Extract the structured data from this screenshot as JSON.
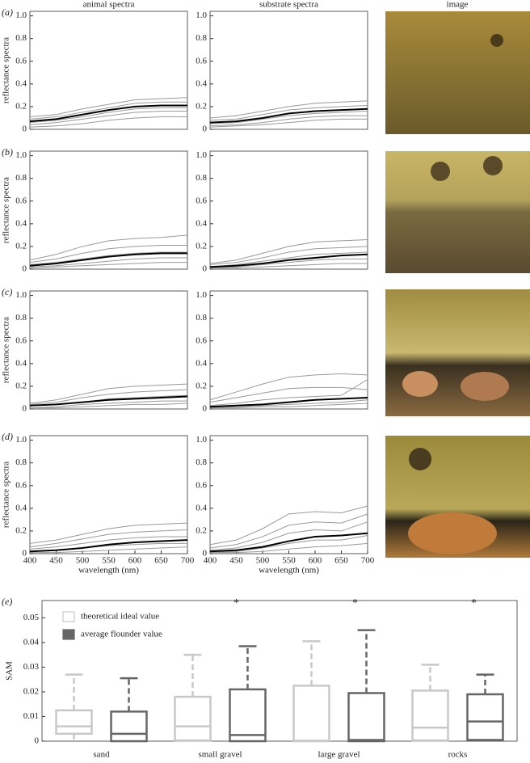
{
  "chart_data": [
    {
      "type": "line",
      "panel": "(a)",
      "title": "animal spectra",
      "ylabel": "reflectance spectra",
      "x": [
        400,
        450,
        500,
        550,
        600,
        650,
        700
      ],
      "xlim": [
        400,
        700
      ],
      "ylim": [
        0,
        1.04
      ],
      "yticks": [
        0,
        0.2,
        0.4,
        0.6,
        0.8,
        {
          "value": 1,
          "label": "1.0"
        }
      ],
      "series": [
        {
          "color": "#999999",
          "values": [
            0.11,
            0.13,
            0.18,
            0.22,
            0.26,
            0.27,
            0.28
          ]
        },
        {
          "color": "#999999",
          "values": [
            0.09,
            0.11,
            0.15,
            0.19,
            0.23,
            0.24,
            0.24
          ]
        },
        {
          "color": "#999999",
          "values": [
            0.06,
            0.08,
            0.11,
            0.15,
            0.18,
            0.19,
            0.19
          ]
        },
        {
          "color": "#999999",
          "values": [
            0.04,
            0.06,
            0.09,
            0.12,
            0.15,
            0.16,
            0.16
          ]
        },
        {
          "color": "#999999",
          "values": [
            0.02,
            0.03,
            0.05,
            0.08,
            0.1,
            0.11,
            0.11
          ]
        },
        {
          "color": "#000000",
          "values": [
            0.07,
            0.09,
            0.13,
            0.17,
            0.2,
            0.21,
            0.21
          ]
        }
      ]
    },
    {
      "type": "line",
      "title": "substrate spectra",
      "x": [
        400,
        450,
        500,
        550,
        600,
        650,
        700
      ],
      "xlim": [
        400,
        700
      ],
      "ylim": [
        0,
        1.04
      ],
      "yticks": [
        0,
        0.2,
        0.4,
        0.6,
        0.8,
        {
          "value": 1,
          "label": "1.0"
        }
      ],
      "series": [
        {
          "color": "#999999",
          "values": [
            0.1,
            0.12,
            0.16,
            0.2,
            0.23,
            0.24,
            0.25
          ]
        },
        {
          "color": "#999999",
          "values": [
            0.08,
            0.09,
            0.13,
            0.17,
            0.19,
            0.2,
            0.21
          ]
        },
        {
          "color": "#999999",
          "values": [
            0.05,
            0.06,
            0.09,
            0.12,
            0.14,
            0.15,
            0.16
          ]
        },
        {
          "color": "#999999",
          "values": [
            0.03,
            0.04,
            0.06,
            0.09,
            0.11,
            0.12,
            0.12
          ]
        },
        {
          "color": "#999999",
          "values": [
            0.02,
            0.03,
            0.04,
            0.06,
            0.08,
            0.09,
            0.09
          ]
        },
        {
          "color": "#000000",
          "values": [
            0.06,
            0.07,
            0.1,
            0.14,
            0.16,
            0.17,
            0.18
          ]
        }
      ]
    },
    {
      "type": "line",
      "panel": "(b)",
      "ylabel": "reflectance spectra",
      "x": [
        400,
        450,
        500,
        550,
        600,
        650,
        700
      ],
      "xlim": [
        400,
        700
      ],
      "ylim": [
        0,
        1.04
      ],
      "yticks": [
        0,
        0.2,
        0.4,
        0.6,
        0.8,
        {
          "value": 1,
          "label": "1.0"
        }
      ],
      "series": [
        {
          "color": "#999999",
          "values": [
            0.08,
            0.13,
            0.2,
            0.25,
            0.27,
            0.28,
            0.3
          ]
        },
        {
          "color": "#999999",
          "values": [
            0.06,
            0.09,
            0.14,
            0.18,
            0.2,
            0.21,
            0.21
          ]
        },
        {
          "color": "#999999",
          "values": [
            0.04,
            0.06,
            0.09,
            0.12,
            0.14,
            0.15,
            0.15
          ]
        },
        {
          "color": "#999999",
          "values": [
            0.02,
            0.03,
            0.05,
            0.07,
            0.09,
            0.1,
            0.1
          ]
        },
        {
          "color": "#999999",
          "values": [
            0.01,
            0.02,
            0.03,
            0.04,
            0.05,
            0.06,
            0.06
          ]
        },
        {
          "color": "#000000",
          "values": [
            0.03,
            0.05,
            0.08,
            0.11,
            0.13,
            0.14,
            0.14
          ]
        }
      ]
    },
    {
      "type": "line",
      "x": [
        400,
        450,
        500,
        550,
        600,
        650,
        700
      ],
      "xlim": [
        400,
        700
      ],
      "ylim": [
        0,
        1.04
      ],
      "yticks": [
        0,
        0.2,
        0.4,
        0.6,
        0.8,
        {
          "value": 1,
          "label": "1.0"
        }
      ],
      "series": [
        {
          "color": "#999999",
          "values": [
            0.05,
            0.08,
            0.14,
            0.2,
            0.24,
            0.25,
            0.26
          ]
        },
        {
          "color": "#999999",
          "values": [
            0.04,
            0.06,
            0.1,
            0.15,
            0.18,
            0.19,
            0.2
          ]
        },
        {
          "color": "#999999",
          "values": [
            0.02,
            0.04,
            0.07,
            0.1,
            0.13,
            0.14,
            0.15
          ]
        },
        {
          "color": "#999999",
          "values": [
            0.01,
            0.02,
            0.04,
            0.06,
            0.08,
            0.09,
            0.09
          ]
        },
        {
          "color": "#999999",
          "values": [
            0.01,
            0.01,
            0.02,
            0.03,
            0.04,
            0.05,
            0.05
          ]
        },
        {
          "color": "#000000",
          "values": [
            0.02,
            0.03,
            0.05,
            0.08,
            0.1,
            0.12,
            0.13
          ]
        }
      ]
    },
    {
      "type": "line",
      "panel": "(c)",
      "ylabel": "reflectance spectra",
      "x": [
        400,
        450,
        500,
        550,
        600,
        650,
        700
      ],
      "xlim": [
        400,
        700
      ],
      "ylim": [
        0,
        1.04
      ],
      "yticks": [
        0,
        0.2,
        0.4,
        0.6,
        0.8,
        {
          "value": 1,
          "label": "1.0"
        }
      ],
      "series": [
        {
          "color": "#999999",
          "values": [
            0.05,
            0.08,
            0.13,
            0.18,
            0.2,
            0.21,
            0.22
          ]
        },
        {
          "color": "#999999",
          "values": [
            0.04,
            0.06,
            0.1,
            0.13,
            0.15,
            0.16,
            0.17
          ]
        },
        {
          "color": "#999999",
          "values": [
            0.03,
            0.04,
            0.06,
            0.09,
            0.1,
            0.11,
            0.12
          ]
        },
        {
          "color": "#999999",
          "values": [
            0.01,
            0.02,
            0.04,
            0.05,
            0.06,
            0.07,
            0.07
          ]
        },
        {
          "color": "#999999",
          "values": [
            0.01,
            0.01,
            0.02,
            0.03,
            0.04,
            0.04,
            0.05
          ]
        },
        {
          "color": "#000000",
          "values": [
            0.03,
            0.04,
            0.06,
            0.08,
            0.09,
            0.1,
            0.11
          ]
        }
      ]
    },
    {
      "type": "line",
      "x": [
        400,
        450,
        500,
        550,
        600,
        650,
        700
      ],
      "xlim": [
        400,
        700
      ],
      "ylim": [
        0,
        1.04
      ],
      "yticks": [
        0,
        0.2,
        0.4,
        0.6,
        0.8,
        {
          "value": 1,
          "label": "1.0"
        }
      ],
      "series": [
        {
          "color": "#999999",
          "values": [
            0.08,
            0.15,
            0.22,
            0.28,
            0.3,
            0.31,
            0.3
          ]
        },
        {
          "color": "#999999",
          "values": [
            0.06,
            0.1,
            0.14,
            0.18,
            0.19,
            0.19,
            0.17
          ]
        },
        {
          "color": "#999999",
          "values": [
            0.03,
            0.05,
            0.08,
            0.1,
            0.11,
            0.12,
            0.26
          ]
        },
        {
          "color": "#999999",
          "values": [
            0.01,
            0.02,
            0.03,
            0.04,
            0.05,
            0.06,
            0.08
          ]
        },
        {
          "color": "#999999",
          "values": [
            0.01,
            0.01,
            0.02,
            0.02,
            0.03,
            0.04,
            0.05
          ]
        },
        {
          "color": "#000000",
          "values": [
            0.02,
            0.03,
            0.04,
            0.06,
            0.08,
            0.09,
            0.1
          ]
        }
      ]
    },
    {
      "type": "line",
      "panel": "(d)",
      "ylabel": "reflectance spectra",
      "xlabel": "wavelength (nm)",
      "x": [
        400,
        450,
        500,
        550,
        600,
        650,
        700
      ],
      "xlim": [
        400,
        700
      ],
      "xticks": [
        400,
        450,
        500,
        550,
        600,
        650,
        700
      ],
      "ylim": [
        0,
        1.04
      ],
      "yticks": [
        0,
        0.2,
        0.4,
        0.6,
        0.8,
        {
          "value": 1,
          "label": "1.0"
        }
      ],
      "series": [
        {
          "color": "#999999",
          "values": [
            0.09,
            0.12,
            0.17,
            0.22,
            0.25,
            0.26,
            0.27
          ]
        },
        {
          "color": "#999999",
          "values": [
            0.06,
            0.09,
            0.13,
            0.17,
            0.19,
            0.2,
            0.21
          ]
        },
        {
          "color": "#999999",
          "values": [
            0.04,
            0.06,
            0.09,
            0.12,
            0.14,
            0.15,
            0.15
          ]
        },
        {
          "color": "#999999",
          "values": [
            0.02,
            0.03,
            0.05,
            0.07,
            0.08,
            0.09,
            0.09
          ]
        },
        {
          "color": "#999999",
          "values": [
            0.01,
            0.01,
            0.02,
            0.03,
            0.04,
            0.05,
            0.06
          ]
        },
        {
          "color": "#000000",
          "values": [
            0.02,
            0.03,
            0.05,
            0.08,
            0.1,
            0.11,
            0.12
          ]
        }
      ]
    },
    {
      "type": "line",
      "xlabel": "wavelength (nm)",
      "x": [
        400,
        450,
        500,
        550,
        600,
        650,
        700
      ],
      "xlim": [
        400,
        700
      ],
      "xticks": [
        400,
        450,
        500,
        550,
        600,
        650,
        700
      ],
      "ylim": [
        0,
        1.04
      ],
      "yticks": [
        0,
        0.2,
        0.4,
        0.6,
        0.8,
        {
          "value": 1,
          "label": "1.0"
        }
      ],
      "series": [
        {
          "color": "#999999",
          "values": [
            0.08,
            0.12,
            0.22,
            0.35,
            0.37,
            0.36,
            0.42
          ]
        },
        {
          "color": "#999999",
          "values": [
            0.05,
            0.08,
            0.15,
            0.25,
            0.28,
            0.27,
            0.35
          ]
        },
        {
          "color": "#999999",
          "values": [
            0.03,
            0.05,
            0.1,
            0.18,
            0.21,
            0.2,
            0.28
          ]
        },
        {
          "color": "#999999",
          "values": [
            0.01,
            0.02,
            0.05,
            0.09,
            0.12,
            0.12,
            0.16
          ]
        },
        {
          "color": "#999999",
          "values": [
            0.01,
            0.01,
            0.02,
            0.04,
            0.06,
            0.07,
            0.09
          ]
        },
        {
          "color": "#000000",
          "values": [
            0.02,
            0.03,
            0.06,
            0.11,
            0.15,
            0.16,
            0.18
          ]
        }
      ]
    },
    {
      "type": "box",
      "panel": "(e)",
      "ylabel": "SAM",
      "categories": [
        "sand",
        "small gravel",
        "large gravel",
        "rocks"
      ],
      "ylim": [
        0,
        0.057
      ],
      "yticks": [
        0,
        0.01,
        0.02,
        0.03,
        0.04,
        0.05
      ],
      "significance": [
        null,
        "*",
        "*",
        "*"
      ],
      "series": [
        {
          "name": "theoretical ideal value",
          "color": "#c8c8c8",
          "low": [
            0,
            0,
            0,
            0
          ],
          "q1": [
            0.003,
            0.0003,
            0,
            0.0003
          ],
          "median": [
            0.006,
            0.006,
            0.0002,
            0.0055
          ],
          "q3": [
            0.0125,
            0.018,
            0.0225,
            0.0205
          ],
          "high": [
            0.027,
            0.035,
            0.0405,
            0.031
          ]
        },
        {
          "name": "average flounder value",
          "color": "#666666",
          "low": [
            0,
            0,
            0,
            0
          ],
          "q1": [
            0,
            0,
            0,
            0.0005
          ],
          "median": [
            0.003,
            0.0025,
            0.0005,
            0.008
          ],
          "q3": [
            0.012,
            0.021,
            0.0195,
            0.019
          ],
          "high": [
            0.0255,
            0.0385,
            0.045,
            0.027
          ]
        }
      ]
    }
  ],
  "images": {
    "header": "image"
  }
}
